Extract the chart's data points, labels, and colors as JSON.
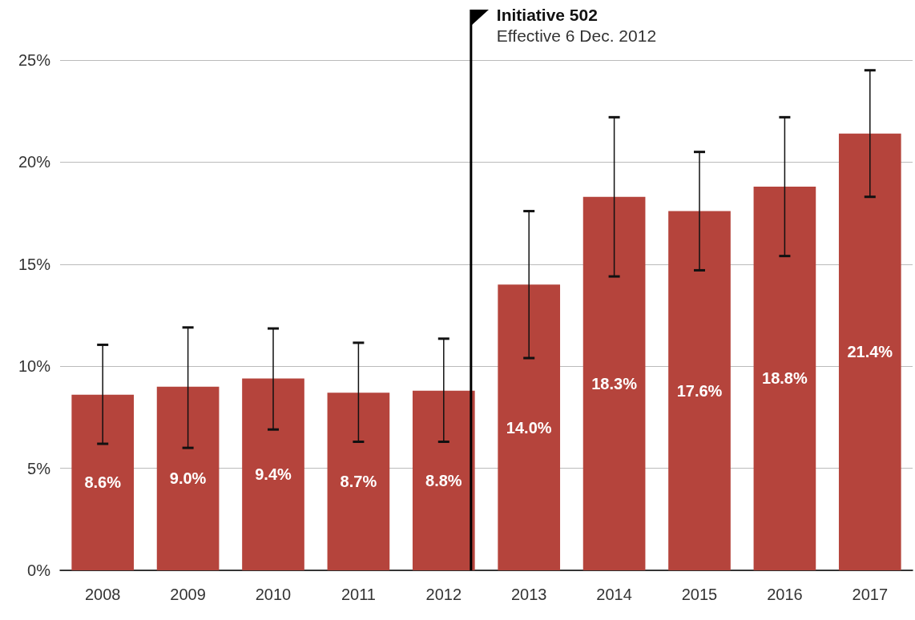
{
  "chart_data": {
    "type": "bar",
    "categories": [
      "2008",
      "2009",
      "2010",
      "2011",
      "2012",
      "2013",
      "2014",
      "2015",
      "2016",
      "2017"
    ],
    "values": [
      8.6,
      9.0,
      9.4,
      8.7,
      8.8,
      14.0,
      18.3,
      17.6,
      18.8,
      21.4
    ],
    "color": "#b5443c",
    "errors": [
      [
        6.2,
        11.05
      ],
      [
        6.0,
        11.9
      ],
      [
        6.9,
        11.85
      ],
      [
        6.3,
        11.15
      ],
      [
        6.3,
        11.35
      ],
      [
        10.4,
        17.6
      ],
      [
        14.4,
        22.2
      ],
      [
        14.7,
        20.5
      ],
      [
        15.4,
        22.2
      ],
      [
        18.3,
        24.5
      ]
    ],
    "value_labels": [
      "8.6%",
      "9.0%",
      "9.4%",
      "8.7%",
      "8.8%",
      "14.0%",
      "18.3%",
      "17.6%",
      "18.8%",
      "21.4%"
    ],
    "ylim": [
      0,
      25
    ],
    "yticks": [
      {
        "value": 0,
        "label": "0%"
      },
      {
        "value": 5,
        "label": "5%"
      },
      {
        "value": 10,
        "label": "10%"
      },
      {
        "value": 15,
        "label": "15%"
      },
      {
        "value": 20,
        "label": "20%"
      },
      {
        "value": 25,
        "label": "25%"
      }
    ],
    "grid": "y",
    "ref_lines": [
      {
        "axis": "x",
        "value": "2012",
        "label": "Initiative 502",
        "color": "#000000"
      }
    ],
    "annotations": [
      "Effective 6 Dec. 2012"
    ]
  }
}
